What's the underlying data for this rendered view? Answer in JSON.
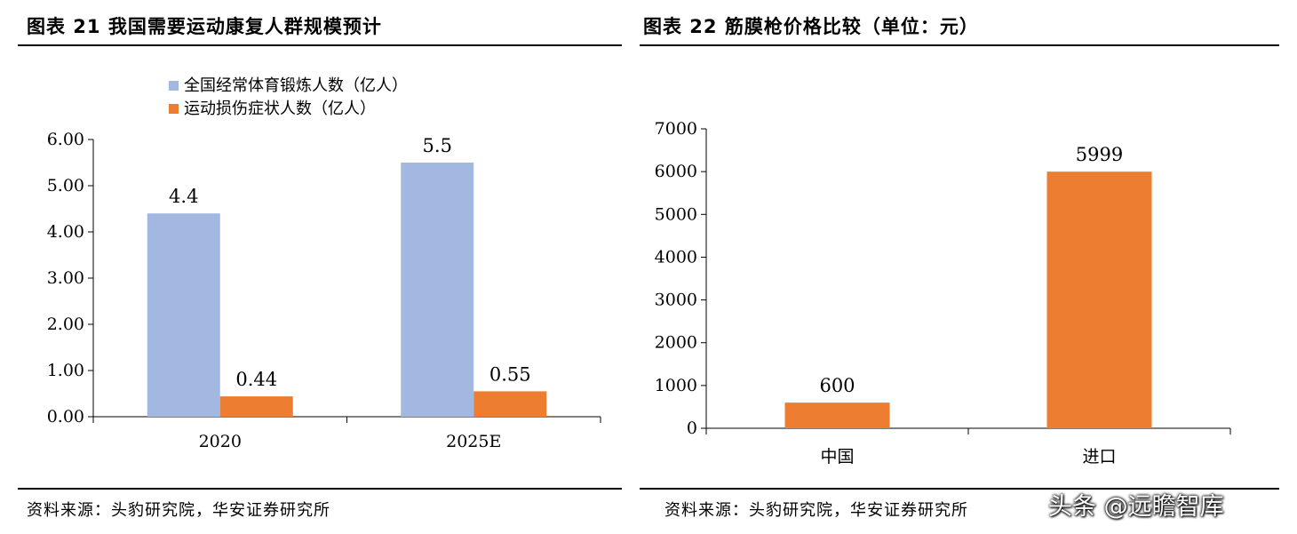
{
  "watermark": "头条 @远瞻智库",
  "panels": [
    {
      "title": "图表 21 我国需要运动康复人群规模预计",
      "source": "资料来源：头豹研究院，华安证券研究所"
    },
    {
      "title": "图表 22 筋膜枪价格比较（单位：元）",
      "source": "资料来源：头豹研究院，华安证券研究所"
    }
  ],
  "chart_data": [
    {
      "type": "bar",
      "categories": [
        "2020",
        "2025E"
      ],
      "series": [
        {
          "name": "全国经常体育锻炼人数（亿人）",
          "values": [
            4.4,
            5.5
          ],
          "labels": [
            "4.4",
            "5.5"
          ],
          "color": "#a2b8e1"
        },
        {
          "name": "运动损伤症状人数（亿人）",
          "values": [
            0.44,
            0.55
          ],
          "labels": [
            "0.44",
            "0.55"
          ],
          "color": "#ed7d31"
        }
      ],
      "yticks": [
        "0.00",
        "1.00",
        "2.00",
        "3.00",
        "4.00",
        "5.00",
        "6.00"
      ],
      "ylim": [
        0,
        6
      ],
      "legend": "top-left"
    },
    {
      "type": "bar",
      "categories": [
        "中国",
        "进口"
      ],
      "series": [
        {
          "values": [
            600,
            5999
          ],
          "labels": [
            "600",
            "5999"
          ],
          "color": "#ed7d31"
        }
      ],
      "yticks": [
        "0",
        "1000",
        "2000",
        "3000",
        "4000",
        "5000",
        "6000",
        "7000"
      ],
      "ylim": [
        0,
        7000
      ]
    }
  ]
}
